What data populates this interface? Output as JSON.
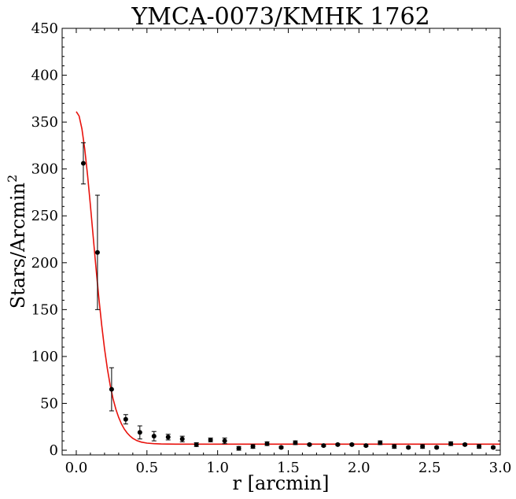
{
  "chart_data": {
    "type": "scatter",
    "title": "YMCA-0073/KMHK 1762",
    "xlabel": "r [arcmin]",
    "ylabel_main": "Stars/Arcmin",
    "ylabel_sup": "2",
    "xlim": [
      -0.1,
      3.0
    ],
    "ylim": [
      -5,
      450
    ],
    "xticks": [
      0.0,
      0.5,
      1.0,
      1.5,
      2.0,
      2.5,
      3.0
    ],
    "xtick_labels": [
      "0.0",
      "0.5",
      "1.0",
      "1.5",
      "2.0",
      "2.5",
      "3.0"
    ],
    "yticks": [
      0,
      50,
      100,
      150,
      200,
      250,
      300,
      350,
      400,
      450
    ],
    "ytick_labels": [
      "0",
      "50",
      "100",
      "150",
      "200",
      "250",
      "300",
      "350",
      "400",
      "450"
    ],
    "grid": false,
    "points": {
      "color": "#000000",
      "x": [
        0.05,
        0.15,
        0.25,
        0.35,
        0.45,
        0.55,
        0.65,
        0.75,
        0.85,
        0.95,
        1.05,
        1.15,
        1.25,
        1.35,
        1.45,
        1.55,
        1.65,
        1.75,
        1.85,
        1.95,
        2.05,
        2.15,
        2.25,
        2.35,
        2.45,
        2.55,
        2.65,
        2.75,
        2.85,
        2.95
      ],
      "y": [
        306,
        211,
        65,
        33,
        19,
        15,
        14,
        12,
        6,
        11,
        10,
        2,
        4,
        7,
        3,
        8,
        6,
        5,
        6,
        6,
        5,
        8,
        4,
        3,
        4,
        3,
        7,
        6,
        4,
        3
      ],
      "yerr": [
        22,
        61,
        23,
        5,
        7,
        5,
        3,
        3,
        2,
        2,
        3,
        2,
        2,
        2,
        1,
        2,
        1,
        1,
        1,
        1,
        1,
        2,
        2,
        1,
        2,
        1,
        2,
        1,
        2,
        1
      ]
    },
    "fit": {
      "color": "#e8120c",
      "x": [
        0.0,
        0.02,
        0.04,
        0.06,
        0.08,
        0.1,
        0.12,
        0.14,
        0.16,
        0.18,
        0.2,
        0.22,
        0.24,
        0.26,
        0.28,
        0.3,
        0.32,
        0.34,
        0.36,
        0.38,
        0.4,
        0.43,
        0.46,
        0.5,
        0.55,
        0.6,
        0.7,
        0.8,
        1.0,
        1.5,
        2.0,
        2.5,
        3.0
      ],
      "y": [
        361.2,
        356.5,
        342.8,
        321.1,
        293.2,
        261.2,
        227.3,
        193.7,
        162.0,
        133.3,
        108.2,
        86.9,
        69.3,
        55.1,
        43.8,
        35.0,
        28.0,
        22.5,
        18.4,
        15.2,
        12.7,
        10.2,
        8.7,
        7.6,
        7.0,
        6.7,
        6.5,
        6.5,
        6.5,
        6.5,
        6.5,
        6.5,
        6.5
      ]
    }
  }
}
